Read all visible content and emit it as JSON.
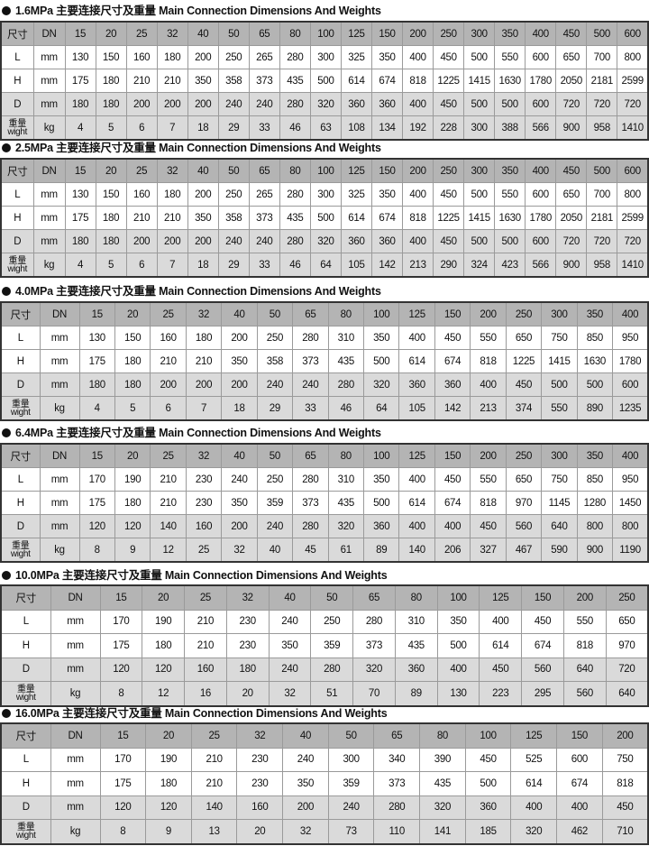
{
  "title_suffix": "主要连接尺寸及重量 Main Connection  Dimensions And Weights",
  "row_labels": {
    "header": [
      "尺寸",
      "DN"
    ],
    "L": [
      "L",
      "mm"
    ],
    "H": [
      "H",
      "mm"
    ],
    "D": [
      "D",
      "mm"
    ],
    "W": [
      "重量 wight",
      "kg"
    ]
  },
  "weight_label_cn": "重量",
  "weight_label_en": "wight",
  "tables": [
    {
      "pressure": "1.6MPa",
      "title": "1.6MPa 主要连接尺寸及重量 Main Connection  Dimensions And Weights",
      "DN": [
        "15",
        "20",
        "25",
        "32",
        "40",
        "50",
        "65",
        "80",
        "100",
        "125",
        "150",
        "200",
        "250",
        "300",
        "350",
        "400",
        "450",
        "500",
        "600"
      ],
      "L": [
        "130",
        "150",
        "160",
        "180",
        "200",
        "250",
        "265",
        "280",
        "300",
        "325",
        "350",
        "400",
        "450",
        "500",
        "550",
        "600",
        "650",
        "700",
        "800"
      ],
      "H": [
        "175",
        "180",
        "210",
        "210",
        "350",
        "358",
        "373",
        "435",
        "500",
        "614",
        "674",
        "818",
        "1225",
        "1415",
        "1630",
        "1780",
        "2050",
        "2181",
        "2599"
      ],
      "D": [
        "180",
        "180",
        "200",
        "200",
        "200",
        "240",
        "240",
        "280",
        "320",
        "360",
        "360",
        "400",
        "450",
        "500",
        "500",
        "600",
        "720",
        "720",
        "720"
      ],
      "kg": [
        "4",
        "5",
        "6",
        "7",
        "18",
        "29",
        "33",
        "46",
        "63",
        "108",
        "134",
        "192",
        "228",
        "300",
        "388",
        "566",
        "900",
        "958",
        "1410"
      ]
    },
    {
      "pressure": "2.5MPa",
      "title": "2.5MPa 主要连接尺寸及重量 Main Connection  Dimensions And Weights",
      "DN": [
        "15",
        "20",
        "25",
        "32",
        "40",
        "50",
        "65",
        "80",
        "100",
        "125",
        "150",
        "200",
        "250",
        "300",
        "350",
        "400",
        "450",
        "500",
        "600"
      ],
      "L": [
        "130",
        "150",
        "160",
        "180",
        "200",
        "250",
        "265",
        "280",
        "300",
        "325",
        "350",
        "400",
        "450",
        "500",
        "550",
        "600",
        "650",
        "700",
        "800"
      ],
      "H": [
        "175",
        "180",
        "210",
        "210",
        "350",
        "358",
        "373",
        "435",
        "500",
        "614",
        "674",
        "818",
        "1225",
        "1415",
        "1630",
        "1780",
        "2050",
        "2181",
        "2599"
      ],
      "D": [
        "180",
        "180",
        "200",
        "200",
        "200",
        "240",
        "240",
        "280",
        "320",
        "360",
        "360",
        "400",
        "450",
        "500",
        "500",
        "600",
        "720",
        "720",
        "720"
      ],
      "kg": [
        "4",
        "5",
        "6",
        "7",
        "18",
        "29",
        "33",
        "46",
        "64",
        "105",
        "142",
        "213",
        "290",
        "324",
        "423",
        "566",
        "900",
        "958",
        "1410"
      ]
    },
    {
      "pressure": "4.0MPa",
      "title": "4.0MPa 主要连接尺寸及重量 Main Connection  Dimensions And Weights",
      "DN": [
        "15",
        "20",
        "25",
        "32",
        "40",
        "50",
        "65",
        "80",
        "100",
        "125",
        "150",
        "200",
        "250",
        "300",
        "350",
        "400"
      ],
      "L": [
        "130",
        "150",
        "160",
        "180",
        "200",
        "250",
        "280",
        "310",
        "350",
        "400",
        "450",
        "550",
        "650",
        "750",
        "850",
        "950"
      ],
      "H": [
        "175",
        "180",
        "210",
        "210",
        "350",
        "358",
        "373",
        "435",
        "500",
        "614",
        "674",
        "818",
        "1225",
        "1415",
        "1630",
        "1780"
      ],
      "D": [
        "180",
        "180",
        "200",
        "200",
        "200",
        "240",
        "240",
        "280",
        "320",
        "360",
        "360",
        "400",
        "450",
        "500",
        "500",
        "600"
      ],
      "kg": [
        "4",
        "5",
        "6",
        "7",
        "18",
        "29",
        "33",
        "46",
        "64",
        "105",
        "142",
        "213",
        "374",
        "550",
        "890",
        "1235"
      ]
    },
    {
      "pressure": "6.4MPa",
      "title": "6.4MPa 主要连接尺寸及重量 Main Connection  Dimensions And Weights",
      "DN": [
        "15",
        "20",
        "25",
        "32",
        "40",
        "50",
        "65",
        "80",
        "100",
        "125",
        "150",
        "200",
        "250",
        "300",
        "350",
        "400"
      ],
      "L": [
        "170",
        "190",
        "210",
        "230",
        "240",
        "250",
        "280",
        "310",
        "350",
        "400",
        "450",
        "550",
        "650",
        "750",
        "850",
        "950"
      ],
      "H": [
        "175",
        "180",
        "210",
        "230",
        "350",
        "359",
        "373",
        "435",
        "500",
        "614",
        "674",
        "818",
        "970",
        "1145",
        "1280",
        "1450"
      ],
      "D": [
        "120",
        "120",
        "140",
        "160",
        "200",
        "240",
        "280",
        "320",
        "360",
        "400",
        "400",
        "450",
        "560",
        "640",
        "800",
        "800"
      ],
      "kg": [
        "8",
        "9",
        "12",
        "25",
        "32",
        "40",
        "45",
        "61",
        "89",
        "140",
        "206",
        "327",
        "467",
        "590",
        "900",
        "1190"
      ]
    },
    {
      "pressure": "10.0MPa",
      "title": "10.0MPa 主要连接尺寸及重量 Main Connection  Dimensions And Weights",
      "DN": [
        "15",
        "20",
        "25",
        "32",
        "40",
        "50",
        "65",
        "80",
        "100",
        "125",
        "150",
        "200",
        "250"
      ],
      "L": [
        "170",
        "190",
        "210",
        "230",
        "240",
        "250",
        "280",
        "310",
        "350",
        "400",
        "450",
        "550",
        "650"
      ],
      "H": [
        "175",
        "180",
        "210",
        "230",
        "350",
        "359",
        "373",
        "435",
        "500",
        "614",
        "674",
        "818",
        "970"
      ],
      "D": [
        "120",
        "120",
        "160",
        "180",
        "240",
        "280",
        "320",
        "360",
        "400",
        "450",
        "560",
        "640",
        "720"
      ],
      "kg": [
        "8",
        "12",
        "16",
        "20",
        "32",
        "51",
        "70",
        "89",
        "130",
        "223",
        "295",
        "560",
        "640"
      ]
    },
    {
      "pressure": "16.0MPa",
      "title": "16.0MPa 主要连接尺寸及重量 Main Connection  Dimensions And Weights",
      "DN": [
        "15",
        "20",
        "25",
        "32",
        "40",
        "50",
        "65",
        "80",
        "100",
        "125",
        "150",
        "200"
      ],
      "L": [
        "170",
        "190",
        "210",
        "230",
        "240",
        "300",
        "340",
        "390",
        "450",
        "525",
        "600",
        "750"
      ],
      "H": [
        "175",
        "180",
        "210",
        "230",
        "350",
        "359",
        "373",
        "435",
        "500",
        "614",
        "674",
        "818"
      ],
      "D": [
        "120",
        "120",
        "140",
        "160",
        "200",
        "240",
        "280",
        "320",
        "360",
        "400",
        "400",
        "450"
      ],
      "kg": [
        "8",
        "9",
        "13",
        "20",
        "32",
        "73",
        "110",
        "141",
        "185",
        "320",
        "462",
        "710"
      ]
    }
  ]
}
